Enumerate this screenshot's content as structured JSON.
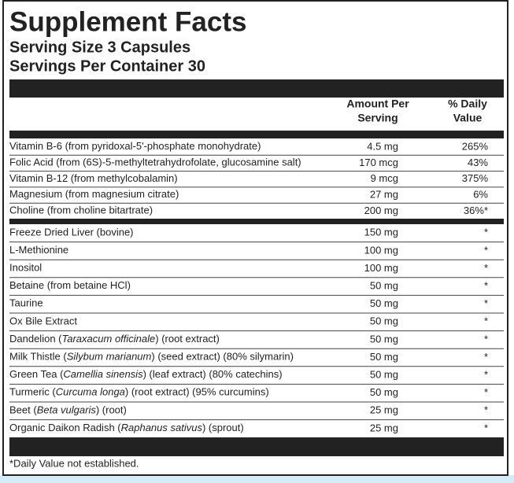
{
  "header": {
    "title": "Supplement Facts",
    "serving_size": "Serving Size 3 Capsules",
    "servings_per_container": "Servings Per Container 30"
  },
  "table": {
    "columns": [
      [
        "Amount Per",
        "Serving"
      ],
      [
        "% Daily",
        "Value"
      ]
    ],
    "sections": [
      [
        {
          "name": [
            "Vitamin B-6 (from pyridoxal-5'-phosphate monohydrate)"
          ],
          "amount": "4.5 mg",
          "dv": "265%"
        },
        {
          "name": [
            "Folic Acid (from (6S)-5-methyltetrahydrofolate, glucosamine salt)"
          ],
          "amount": "170 mcg",
          "dv": "43%"
        },
        {
          "name": [
            "Vitamin B-12 (from methylcobalamin)"
          ],
          "amount": "9 mcg",
          "dv": "375%"
        },
        {
          "name": [
            "Magnesium (from magnesium citrate)"
          ],
          "amount": "27 mg",
          "dv": "6%"
        },
        {
          "name": [
            "Choline (from choline bitartrate)"
          ],
          "amount": "200 mg",
          "dv": "36%*"
        }
      ],
      [
        {
          "name": [
            "Freeze Dried Liver (bovine)"
          ],
          "amount": "150 mg",
          "dv": "*"
        },
        {
          "name": [
            "L-Methionine"
          ],
          "amount": "100 mg",
          "dv": "*"
        },
        {
          "name": [
            "Inositol"
          ],
          "amount": "100 mg",
          "dv": "*"
        },
        {
          "name": [
            "Betaine (from betaine HCl)"
          ],
          "amount": "50 mg",
          "dv": "*"
        },
        {
          "name": [
            "Taurine"
          ],
          "amount": "50 mg",
          "dv": "*"
        },
        {
          "name": [
            "Ox Bile Extract"
          ],
          "amount": "50 mg",
          "dv": "*"
        },
        {
          "name": [
            "Dandelion (",
            "Taraxacum officinale",
            ") (root extract)"
          ],
          "amount": "50 mg",
          "dv": "*"
        },
        {
          "name": [
            "Milk Thistle (",
            "Silybum marianum",
            ") (seed extract) (80% silymarin)"
          ],
          "amount": "50 mg",
          "dv": "*"
        },
        {
          "name": [
            "Green Tea (",
            "Camellia sinensis",
            ") (leaf extract) (80% catechins)"
          ],
          "amount": "50 mg",
          "dv": "*"
        },
        {
          "name": [
            "Turmeric (",
            "Curcuma longa",
            ") (root extract) (95% curcumins)"
          ],
          "amount": "50 mg",
          "dv": "*"
        },
        {
          "name": [
            "Beet (",
            "Beta vulgaris",
            ") (root)"
          ],
          "amount": "25 mg",
          "dv": "*"
        },
        {
          "name": [
            "Organic Daikon Radish (",
            "Raphanus sativus",
            ") (sprout)"
          ],
          "amount": "25 mg",
          "dv": "*"
        }
      ]
    ],
    "footnote": "*Daily Value not established."
  }
}
